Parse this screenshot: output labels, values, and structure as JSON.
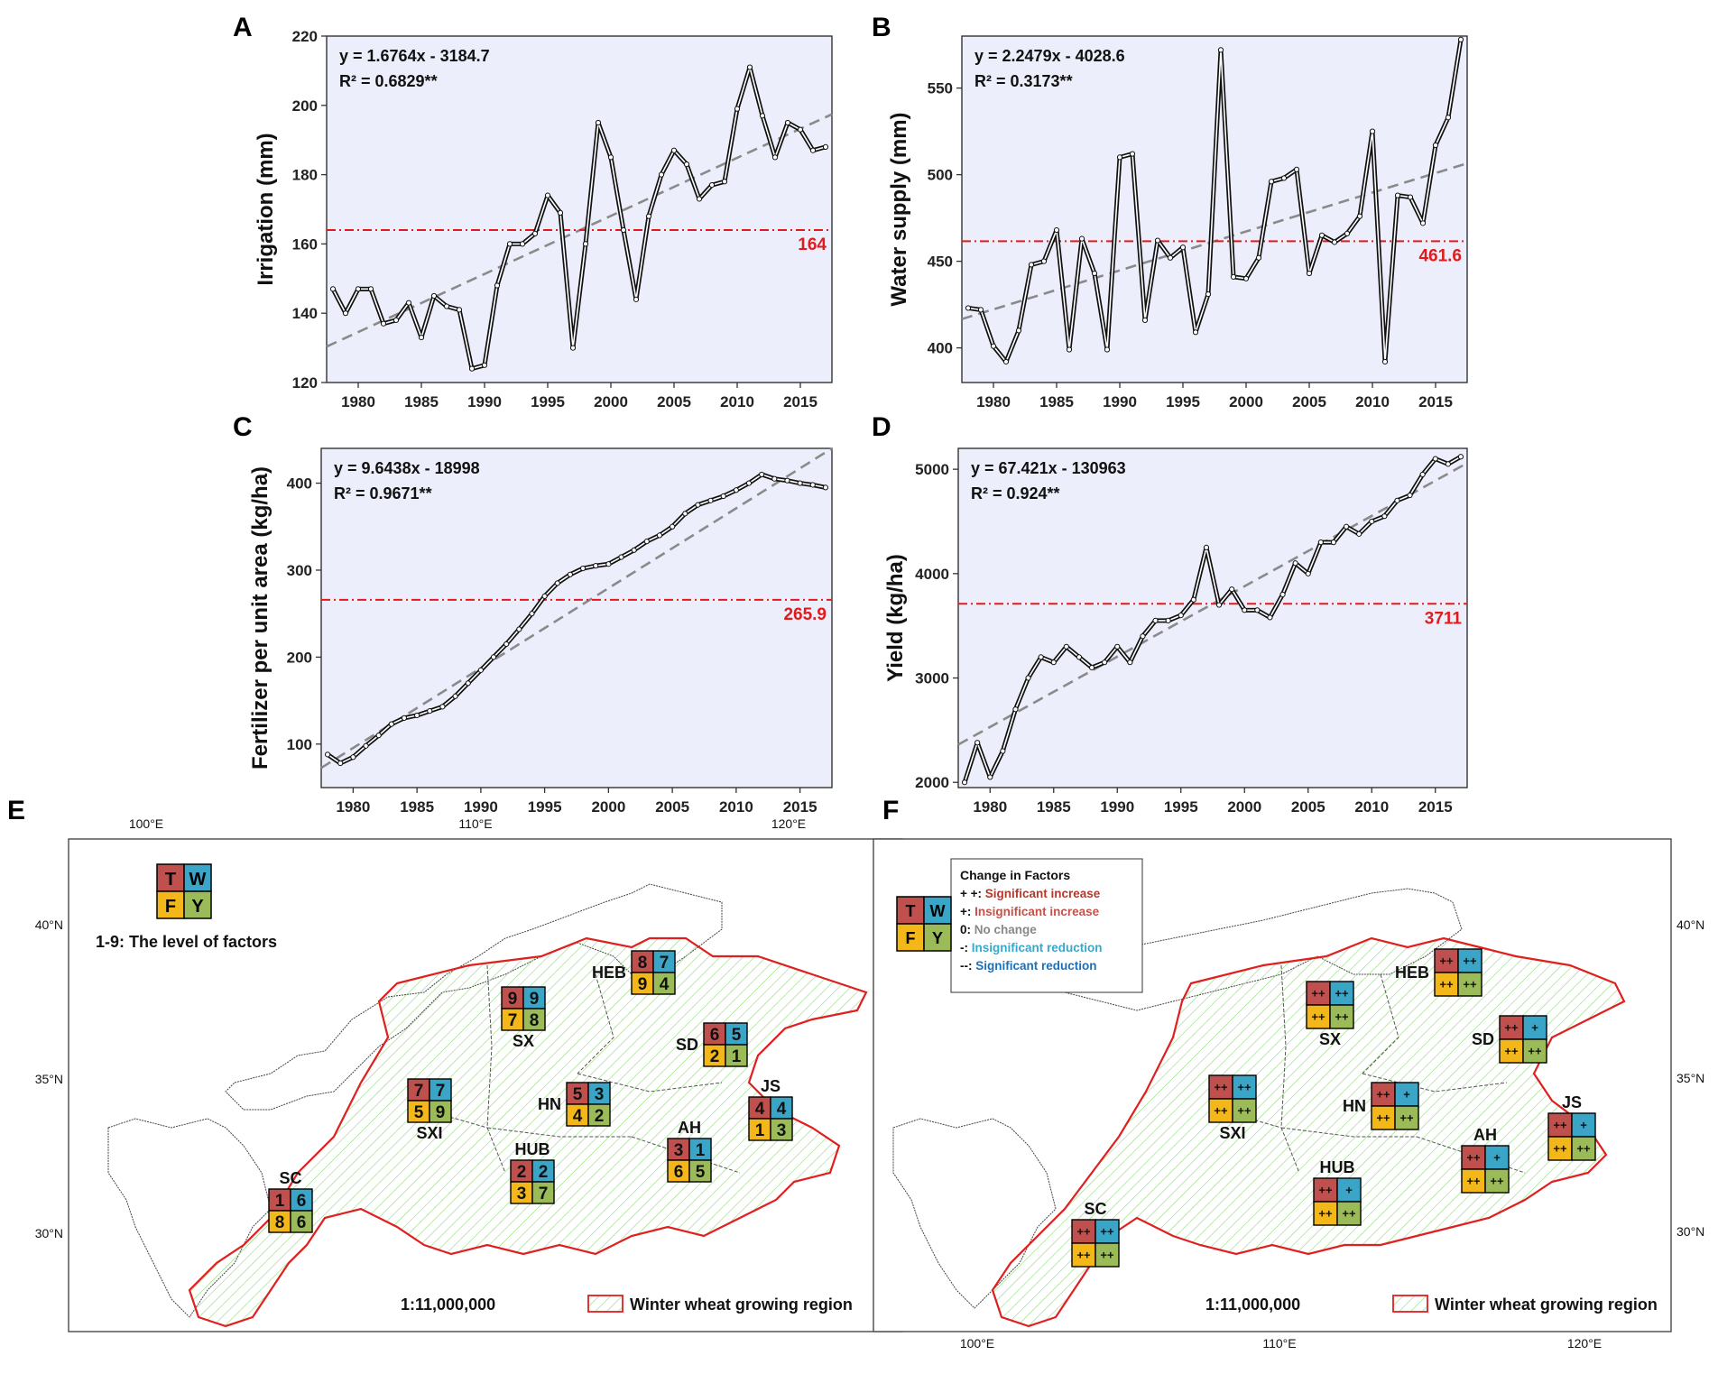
{
  "chart_data": [
    {
      "panel": "A",
      "type": "line",
      "ylabel": "Irrigation (mm)",
      "xlabel": "",
      "xlim": [
        1977.5,
        2017.5
      ],
      "ylim": [
        120,
        220
      ],
      "xticks": [
        "1980",
        "1985",
        "1990",
        "1995",
        "2000",
        "2005",
        "2010",
        "2015"
      ],
      "yticks": [
        "120",
        "140",
        "160",
        "180",
        "200",
        "220"
      ],
      "equation": "y = 1.6764x - 3184.7",
      "r2": "R² = 0.6829**",
      "mean": 164,
      "mean_label": "164",
      "trend": {
        "slope": 1.6764,
        "intercept": -3184.7
      },
      "x": [
        1978,
        1979,
        1980,
        1981,
        1982,
        1983,
        1984,
        1985,
        1986,
        1987,
        1988,
        1989,
        1990,
        1991,
        1992,
        1993,
        1994,
        1995,
        1996,
        1997,
        1998,
        1999,
        2000,
        2001,
        2002,
        2003,
        2004,
        2005,
        2006,
        2007,
        2008,
        2009,
        2010,
        2011,
        2012,
        2013,
        2014,
        2015,
        2016,
        2017
      ],
      "y": [
        147,
        140,
        147,
        147,
        137,
        138,
        143,
        133,
        145,
        142,
        141,
        124,
        125,
        148,
        160,
        160,
        163,
        174,
        169,
        130,
        160,
        195,
        185,
        164,
        144,
        168,
        180,
        187,
        183,
        173,
        177,
        178,
        199,
        211,
        197,
        185,
        195,
        193,
        187,
        188
      ]
    },
    {
      "panel": "B",
      "type": "line",
      "ylabel": "Water supply (mm)",
      "xlabel": "",
      "xlim": [
        1977.5,
        2017.5
      ],
      "ylim": [
        380,
        580
      ],
      "xticks": [
        "1980",
        "1985",
        "1990",
        "1995",
        "2000",
        "2005",
        "2010",
        "2015"
      ],
      "yticks": [
        "400",
        "450",
        "500",
        "550"
      ],
      "equation": "y = 2.2479x - 4028.6",
      "r2": "R² = 0.3173**",
      "mean": 461.6,
      "mean_label": "461.6",
      "trend": {
        "slope": 2.2479,
        "intercept": -4028.6
      },
      "x": [
        1978,
        1979,
        1980,
        1981,
        1982,
        1983,
        1984,
        1985,
        1986,
        1987,
        1988,
        1989,
        1990,
        1991,
        1992,
        1993,
        1994,
        1995,
        1996,
        1997,
        1998,
        1999,
        2000,
        2001,
        2002,
        2003,
        2004,
        2005,
        2006,
        2007,
        2008,
        2009,
        2010,
        2011,
        2012,
        2013,
        2014,
        2015,
        2016,
        2017
      ],
      "y": [
        423,
        422,
        401,
        392,
        410,
        448,
        450,
        468,
        399,
        463,
        443,
        399,
        510,
        512,
        416,
        462,
        452,
        458,
        409,
        431,
        572,
        441,
        440,
        452,
        496,
        498,
        503,
        443,
        465,
        461,
        466,
        476,
        525,
        392,
        488,
        487,
        472,
        517,
        533,
        578
      ]
    },
    {
      "panel": "C",
      "type": "line",
      "ylabel": "Fertilizer per unit area (kg/ha)",
      "xlabel": "",
      "xlim": [
        1977.5,
        2017.5
      ],
      "ylim": [
        50,
        440
      ],
      "xticks": [
        "1980",
        "1985",
        "1990",
        "1995",
        "2000",
        "2005",
        "2010",
        "2015"
      ],
      "yticks": [
        "100",
        "200",
        "300",
        "400"
      ],
      "equation": "y = 9.6438x - 18998",
      "r2": "R² = 0.9671**",
      "mean": 265.9,
      "mean_label": "265.9",
      "trend": {
        "slope": 9.6438,
        "intercept": -18998
      },
      "x": [
        1978,
        1979,
        1980,
        1981,
        1982,
        1983,
        1984,
        1985,
        1986,
        1987,
        1988,
        1989,
        1990,
        1991,
        1992,
        1993,
        1994,
        1995,
        1996,
        1997,
        1998,
        1999,
        2000,
        2001,
        2002,
        2003,
        2004,
        2005,
        2006,
        2007,
        2008,
        2009,
        2010,
        2011,
        2012,
        2013,
        2014,
        2015,
        2016,
        2017
      ],
      "y": [
        88,
        78,
        85,
        98,
        110,
        123,
        130,
        133,
        138,
        143,
        155,
        170,
        185,
        200,
        215,
        232,
        250,
        270,
        285,
        295,
        302,
        305,
        307,
        315,
        323,
        333,
        340,
        350,
        365,
        375,
        380,
        385,
        392,
        400,
        410,
        405,
        403,
        400,
        398,
        395
      ]
    },
    {
      "panel": "D",
      "type": "line",
      "ylabel": "Yield (kg/ha)",
      "xlabel": "",
      "xlim": [
        1977.5,
        2017.5
      ],
      "ylim": [
        1950,
        5200
      ],
      "xticks": [
        "1980",
        "1985",
        "1990",
        "1995",
        "2000",
        "2005",
        "2010",
        "2015"
      ],
      "yticks": [
        "2000",
        "3000",
        "4000",
        "5000"
      ],
      "equation": "y = 67.421x - 130963",
      "r2": "R² = 0.924**",
      "mean": 3711,
      "mean_label": "3711",
      "trend": {
        "slope": 67.421,
        "intercept": -130963
      },
      "x": [
        1978,
        1979,
        1980,
        1981,
        1982,
        1983,
        1984,
        1985,
        1986,
        1987,
        1988,
        1989,
        1990,
        1991,
        1992,
        1993,
        1994,
        1995,
        1996,
        1997,
        1998,
        1999,
        2000,
        2001,
        2002,
        2003,
        2004,
        2005,
        2006,
        2007,
        2008,
        2009,
        2010,
        2011,
        2012,
        2013,
        2014,
        2015,
        2016,
        2017
      ],
      "y": [
        2000,
        2380,
        2050,
        2300,
        2700,
        3000,
        3200,
        3150,
        3300,
        3200,
        3100,
        3150,
        3300,
        3150,
        3400,
        3550,
        3550,
        3600,
        3750,
        4250,
        3700,
        3850,
        3650,
        3650,
        3580,
        3800,
        4100,
        4000,
        4300,
        4300,
        4450,
        4380,
        4500,
        4550,
        4700,
        4750,
        4950,
        5100,
        5050,
        5120
      ]
    }
  ],
  "panels": {
    "a": "A",
    "b": "B",
    "c": "C",
    "d": "D",
    "e": "E",
    "f": "F"
  },
  "maps": {
    "top_lon_labels": [
      "100°E",
      "110°E",
      "120°E"
    ],
    "bottom_lon_labels": [
      "100°E",
      "110°E",
      "120°E"
    ],
    "left_lat_labels": [
      "40°N",
      "35°N",
      "30°N"
    ],
    "right_lat_labels": [
      "40°N",
      "35°N",
      "30°N"
    ],
    "scale_e": "1:11,000,000",
    "scale_f": "1:11,000,000",
    "legend_region": "Winter wheat growing region",
    "key_letters": {
      "t": "T",
      "w": "W",
      "f": "F",
      "y": "Y"
    },
    "levels_note": "1-9: The level of factors",
    "change_legend": {
      "title": "Change in Factors",
      "items": [
        {
          "prefix": "+ +:",
          "text": " Significant increase",
          "color": "#b03a2e"
        },
        {
          "prefix": "+:",
          "text": " Insignificant increase",
          "color": "#c8504a"
        },
        {
          "prefix": "0:",
          "text": " No change",
          "color": "#888888"
        },
        {
          "prefix": "-:",
          "text": " Insignificant reduction",
          "color": "#3aa8c8"
        },
        {
          "prefix": "--:",
          "text": " Significant reduction",
          "color": "#1f6fb5"
        }
      ]
    },
    "colors": {
      "t": "#c0504d",
      "w": "#3aa5c7",
      "f": "#f4b71a",
      "y": "#9bbb59",
      "region": "#e01f1f",
      "hatch": "#8ed97a"
    },
    "regions_e": [
      {
        "name": "HEB",
        "t": "8",
        "w": "7",
        "f": "9",
        "y": "4"
      },
      {
        "name": "SX",
        "t": "9",
        "w": "9",
        "f": "7",
        "y": "8"
      },
      {
        "name": "SD",
        "t": "6",
        "w": "5",
        "f": "2",
        "y": "1"
      },
      {
        "name": "SXI",
        "t": "7",
        "w": "7",
        "f": "5",
        "y": "9"
      },
      {
        "name": "HN",
        "t": "5",
        "w": "3",
        "f": "4",
        "y": "2"
      },
      {
        "name": "JS",
        "t": "4",
        "w": "4",
        "f": "1",
        "y": "3"
      },
      {
        "name": "HUB",
        "t": "2",
        "w": "2",
        "f": "3",
        "y": "7"
      },
      {
        "name": "AH",
        "t": "3",
        "w": "1",
        "f": "6",
        "y": "5"
      },
      {
        "name": "SC",
        "t": "1",
        "w": "6",
        "f": "8",
        "y": "6"
      }
    ],
    "regions_f": [
      {
        "name": "HEB",
        "t": "++",
        "w": "++",
        "f": "++",
        "y": "++"
      },
      {
        "name": "SX",
        "t": "++",
        "w": "++",
        "f": "++",
        "y": "++"
      },
      {
        "name": "SD",
        "t": "++",
        "w": "+",
        "f": "++",
        "y": "++"
      },
      {
        "name": "SXI",
        "t": "++",
        "w": "++",
        "f": "++",
        "y": "++"
      },
      {
        "name": "HN",
        "t": "++",
        "w": "+",
        "f": "++",
        "y": "++"
      },
      {
        "name": "JS",
        "t": "++",
        "w": "+",
        "f": "++",
        "y": "++"
      },
      {
        "name": "HUB",
        "t": "++",
        "w": "+",
        "f": "++",
        "y": "++"
      },
      {
        "name": "AH",
        "t": "++",
        "w": "+",
        "f": "++",
        "y": "++"
      },
      {
        "name": "SC",
        "t": "++",
        "w": "++",
        "f": "++",
        "y": "++"
      }
    ]
  }
}
